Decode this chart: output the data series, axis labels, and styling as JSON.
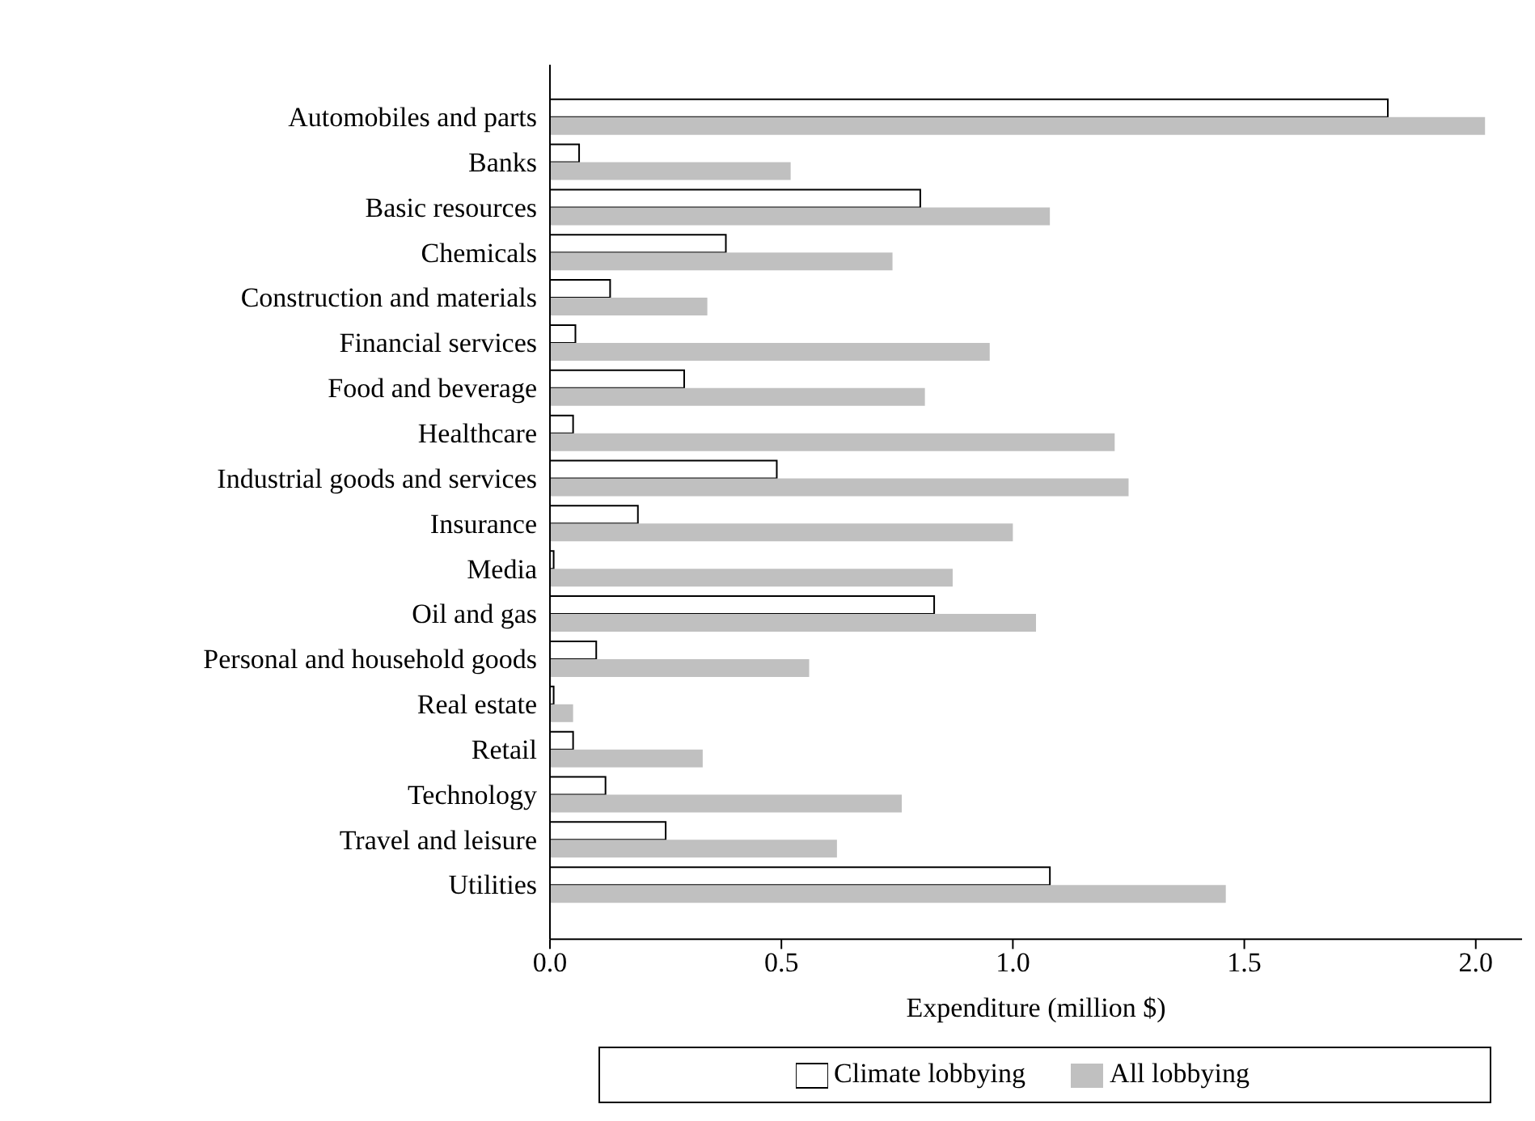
{
  "chart_data": {
    "type": "bar",
    "orientation": "horizontal",
    "xlabel": "Expenditure (million $)",
    "categories": [
      "Automobiles and parts",
      "Banks",
      "Basic resources",
      "Chemicals",
      "Construction and materials",
      "Financial services",
      "Food and beverage",
      "Healthcare",
      "Industrial goods and services",
      "Insurance",
      "Media",
      "Oil and gas",
      "Personal and household goods",
      "Real estate",
      "Retail",
      "Technology",
      "Travel and leisure",
      "Utilities"
    ],
    "series": [
      {
        "name": "Climate lobbying",
        "color": "#ffffff",
        "values": [
          1.81,
          0.063,
          0.8,
          0.38,
          0.13,
          0.055,
          0.29,
          0.05,
          0.49,
          0.19,
          0.008,
          0.83,
          0.1,
          0.008,
          0.05,
          0.12,
          0.25,
          1.08
        ]
      },
      {
        "name": "All lobbying",
        "color": "#c0c0c0",
        "values": [
          2.02,
          0.52,
          1.08,
          0.74,
          0.34,
          0.95,
          0.81,
          1.22,
          1.25,
          1.0,
          0.87,
          1.05,
          0.56,
          0.05,
          0.33,
          0.76,
          0.62,
          1.46
        ]
      }
    ],
    "xlim": [
      0,
      2.1
    ],
    "xticks": [
      {
        "value": 0,
        "label": "0.0"
      },
      0.5,
      {
        "value": 1,
        "label": "1.0"
      },
      1.5,
      {
        "value": 2,
        "label": "2.0"
      }
    ],
    "grid": false,
    "legend": "bottom"
  }
}
